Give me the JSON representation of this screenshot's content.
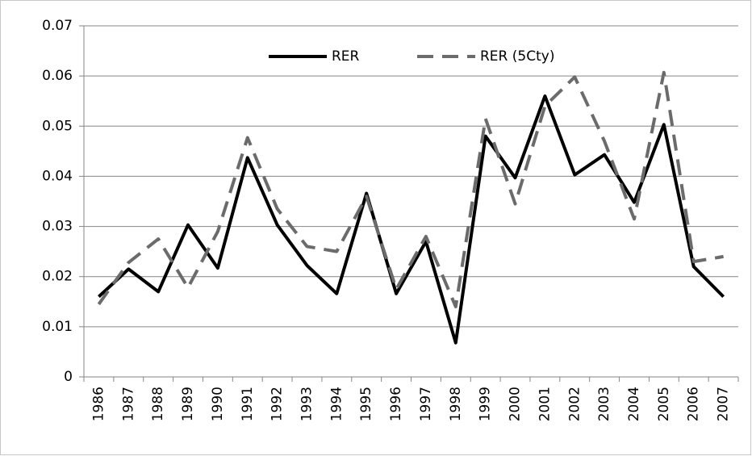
{
  "chart_data": {
    "type": "line",
    "categories": [
      "1986",
      "1987",
      "1988",
      "1989",
      "1990",
      "1991",
      "1992",
      "1993",
      "1994",
      "1995",
      "1996",
      "1997",
      "1998",
      "1999",
      "2000",
      "2001",
      "2002",
      "2003",
      "2004",
      "2005",
      "2006",
      "2007"
    ],
    "series": [
      {
        "name": "RER",
        "color": "#000000",
        "dash": "solid",
        "values": [
          0.016,
          0.0215,
          0.017,
          0.0303,
          0.0217,
          0.0437,
          0.0303,
          0.0222,
          0.0166,
          0.0366,
          0.0166,
          0.027,
          0.0068,
          0.048,
          0.0397,
          0.056,
          0.0403,
          0.0443,
          0.0348,
          0.0503,
          0.022,
          0.016
        ]
      },
      {
        "name": "RER (5Cty)",
        "color": "#6b6b6b",
        "dash": "dashed",
        "values": [
          0.0145,
          0.0228,
          0.0275,
          0.0178,
          0.029,
          0.0477,
          0.0335,
          0.026,
          0.025,
          0.036,
          0.0175,
          0.028,
          0.014,
          0.0515,
          0.0345,
          0.054,
          0.0598,
          0.047,
          0.0315,
          0.0607,
          0.023,
          0.024
        ]
      }
    ],
    "ylim": [
      0,
      0.07
    ],
    "yticks": [
      0,
      0.01,
      0.02,
      0.03,
      0.04,
      0.05,
      0.06,
      0.07
    ],
    "grid": true,
    "legend": "top"
  }
}
